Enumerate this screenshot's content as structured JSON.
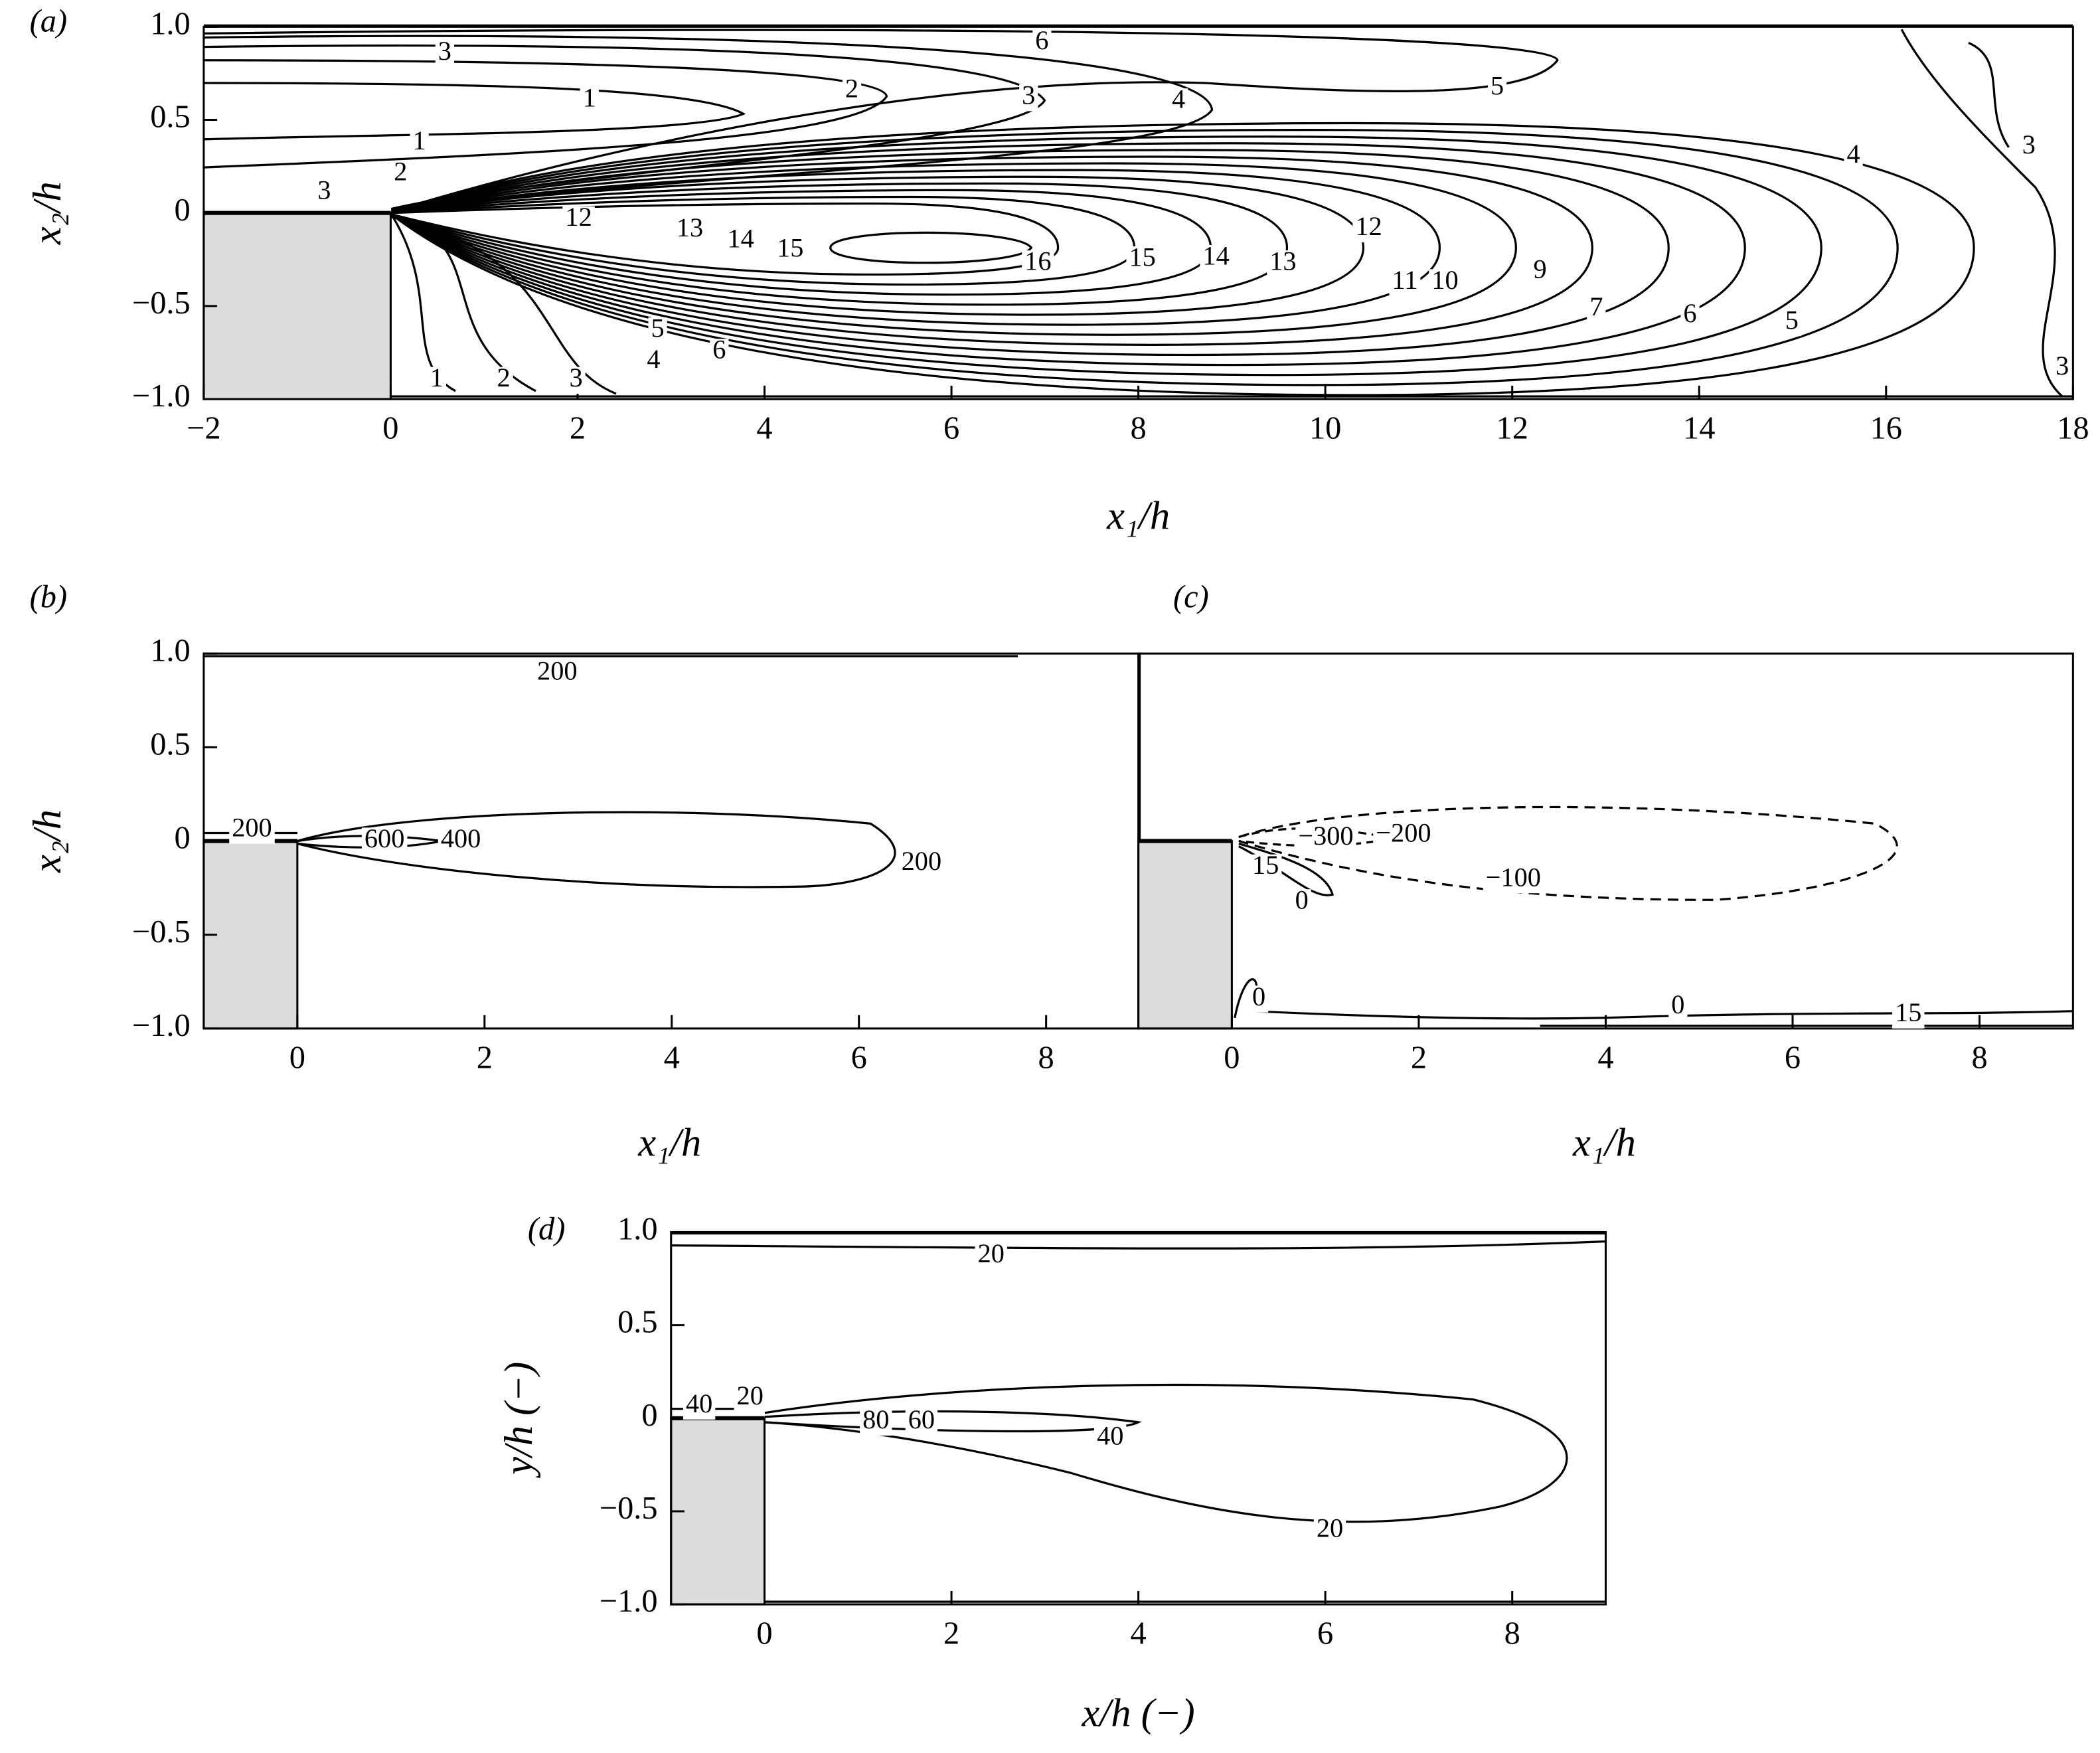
{
  "chart_data": [
    {
      "type": "contour",
      "panel": "(a)",
      "xlabel": "x₁/h",
      "ylabel": "x₂/h",
      "xlim": [
        -2,
        18
      ],
      "ylim": [
        -1,
        1
      ],
      "xticks": [
        {
          "value": -2,
          "label": "−2"
        },
        0,
        2,
        4,
        6,
        8,
        10,
        12,
        14,
        16,
        18
      ],
      "yticks": [
        {
          "value": -1,
          "label": "−1.0"
        },
        {
          "value": -0.5,
          "label": "−0.5"
        },
        0,
        0.5,
        {
          "value": 1,
          "label": "1.0"
        }
      ],
      "contour_labels": [
        6,
        3,
        1,
        2,
        3,
        4,
        5,
        1,
        2,
        3,
        4,
        3,
        12,
        13,
        14,
        15,
        16,
        15,
        14,
        13,
        12,
        11,
        10,
        9,
        7,
        6,
        5,
        5,
        4,
        6,
        1,
        2,
        3,
        3
      ]
    },
    {
      "type": "contour",
      "panel": "(b)",
      "xlabel": "x₁/h",
      "ylabel": "x₂/h",
      "xlim": [
        -1,
        9
      ],
      "ylim": [
        -1,
        1
      ],
      "xticks": [
        0,
        2,
        4,
        6,
        8
      ],
      "yticks": [
        {
          "value": -1,
          "label": "−1.0"
        },
        {
          "value": -0.5,
          "label": "−0.5"
        },
        0,
        0.5,
        {
          "value": 1,
          "label": "1.0"
        }
      ],
      "contour_labels": [
        200,
        200,
        600,
        400,
        200
      ]
    },
    {
      "type": "contour",
      "panel": "(c)",
      "xlabel": "x₁/h",
      "xlim": [
        -1,
        9
      ],
      "ylim": [
        -1,
        1
      ],
      "xticks": [
        0,
        2,
        4,
        6,
        8
      ],
      "contour_labels": [
        {
          "value": -300,
          "label": "−300"
        },
        {
          "value": -200,
          "label": "−200"
        },
        15,
        0,
        {
          "value": -100,
          "label": "−100"
        },
        0,
        0,
        15
      ]
    },
    {
      "type": "contour",
      "panel": "(d)",
      "xlabel": "x/h (−)",
      "ylabel": "y/h (−)",
      "xlim": [
        -1,
        9
      ],
      "ylim": [
        -1,
        1
      ],
      "xticks": [
        0,
        2,
        4,
        6,
        8
      ],
      "yticks": [
        {
          "value": -1,
          "label": "−1.0"
        },
        {
          "value": -0.5,
          "label": "−0.5"
        },
        0,
        0.5,
        {
          "value": 1,
          "label": "1.0"
        }
      ],
      "contour_labels": [
        20,
        40,
        20,
        80,
        60,
        40,
        20
      ]
    }
  ]
}
